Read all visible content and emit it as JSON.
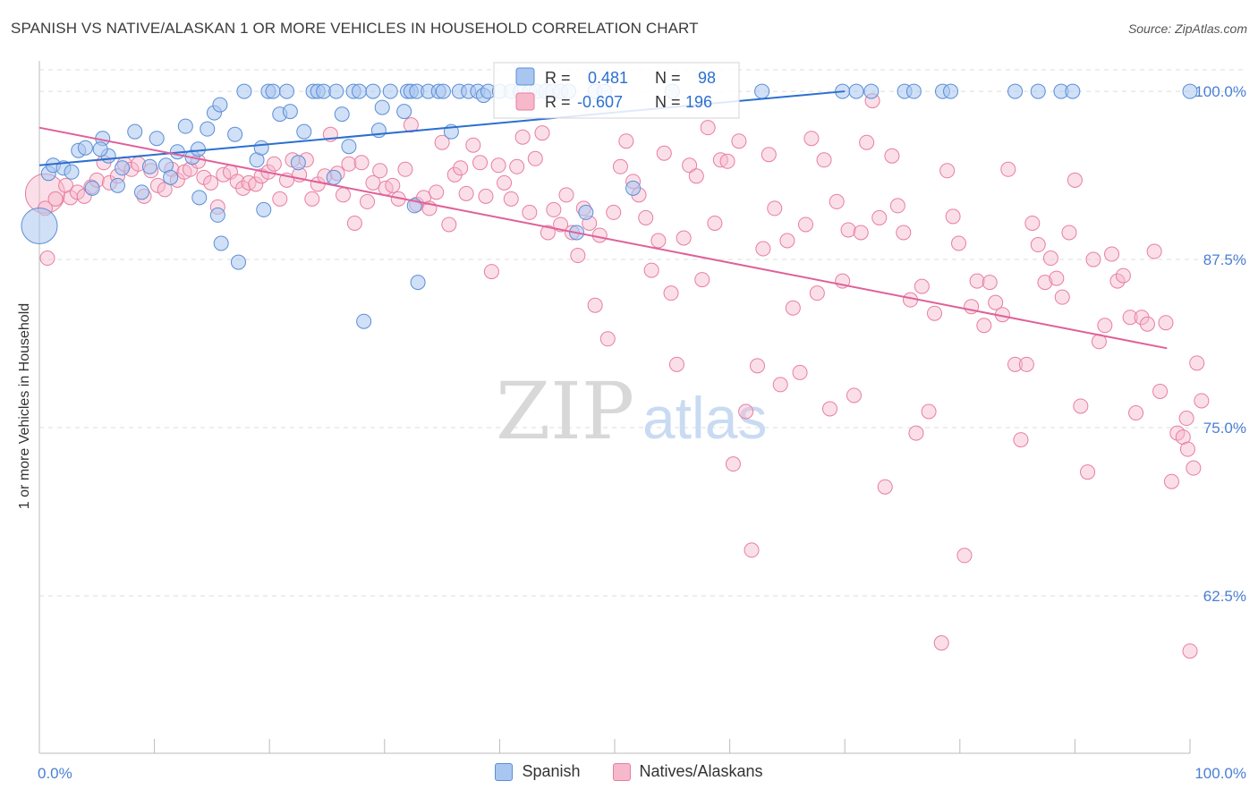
{
  "title": "SPANISH VS NATIVE/ALASKAN 1 OR MORE VEHICLES IN HOUSEHOLD CORRELATION CHART",
  "source": "Source: ZipAtlas.com",
  "watermark": {
    "zip": "ZIP",
    "atlas": "atlas"
  },
  "colors": {
    "spanish_fill": "#a9c6f0",
    "spanish_stroke": "#5b8ed6",
    "spanish_line": "#2b6fd0",
    "native_fill": "#f6b8cb",
    "native_stroke": "#e87ea0",
    "native_line": "#e0609a",
    "tick_text": "#4a7fd4",
    "grid": "#dddddd"
  },
  "legend_box": {
    "rows": [
      {
        "r_label": "R =",
        "r_value": "0.481",
        "n_label": "N =",
        "n_value": "98"
      },
      {
        "r_label": "R =",
        "r_value": "-0.607",
        "n_label": "N =",
        "n_value": "196"
      }
    ]
  },
  "bottom_legend": {
    "spanish": "Spanish",
    "natives": "Natives/Alaskans"
  },
  "chart_data": {
    "type": "scatter",
    "title": "SPANISH VS NATIVE/ALASKAN 1 OR MORE VEHICLES IN HOUSEHOLD CORRELATION CHART",
    "xlabel": "",
    "ylabel": "1 or more Vehicles in Household",
    "xlim": [
      0,
      100
    ],
    "ylim": [
      50.8,
      101.6
    ],
    "x_tick_labels": [
      "0.0%",
      "100.0%"
    ],
    "y_ticks": [
      62.5,
      75.0,
      87.5,
      100.0
    ],
    "y_tick_labels": [
      "62.5%",
      "75.0%",
      "87.5%",
      "100.0%"
    ],
    "grid": true,
    "legend_position": "top-center",
    "series": [
      {
        "name": "Spanish",
        "r": 0.481,
        "n": 98,
        "trend": {
          "x": [
            0,
            70
          ],
          "y": [
            94.5,
            100.0
          ]
        },
        "points": [
          [
            0.8,
            93.9
          ],
          [
            1.2,
            94.5
          ],
          [
            2.1,
            94.3
          ],
          [
            2.8,
            94.0
          ],
          [
            3.4,
            95.6
          ],
          [
            4.0,
            95.8
          ],
          [
            4.6,
            92.8
          ],
          [
            5.5,
            96.5
          ],
          [
            6.0,
            95.2
          ],
          [
            5.3,
            95.7
          ],
          [
            6.8,
            93.0
          ],
          [
            7.2,
            94.3
          ],
          [
            8.3,
            97.0
          ],
          [
            8.9,
            92.5
          ],
          [
            9.6,
            94.4
          ],
          [
            10.2,
            96.5
          ],
          [
            11.0,
            94.5
          ],
          [
            11.4,
            93.6
          ],
          [
            12.0,
            95.5
          ],
          [
            12.7,
            97.4
          ],
          [
            13.3,
            95.1
          ],
          [
            13.8,
            95.7
          ],
          [
            13.9,
            92.1
          ],
          [
            14.6,
            97.2
          ],
          [
            15.2,
            98.4
          ],
          [
            15.7,
            99.0
          ],
          [
            15.5,
            90.8
          ],
          [
            15.8,
            88.7
          ],
          [
            17.0,
            96.8
          ],
          [
            17.3,
            87.3
          ],
          [
            17.8,
            100.0
          ],
          [
            18.9,
            94.9
          ],
          [
            19.3,
            95.8
          ],
          [
            19.5,
            91.2
          ],
          [
            19.9,
            100.0
          ],
          [
            20.3,
            100.0
          ],
          [
            20.9,
            98.3
          ],
          [
            21.5,
            100.0
          ],
          [
            21.8,
            98.5
          ],
          [
            22.5,
            94.7
          ],
          [
            23.0,
            97.0
          ],
          [
            23.8,
            100.0
          ],
          [
            24.2,
            100.0
          ],
          [
            24.7,
            100.0
          ],
          [
            25.6,
            93.6
          ],
          [
            25.8,
            100.0
          ],
          [
            26.3,
            98.3
          ],
          [
            26.9,
            95.9
          ],
          [
            27.3,
            100.0
          ],
          [
            27.8,
            100.0
          ],
          [
            28.2,
            82.9
          ],
          [
            29.0,
            100.0
          ],
          [
            29.5,
            97.1
          ],
          [
            29.8,
            98.8
          ],
          [
            30.5,
            100.0
          ],
          [
            31.7,
            98.5
          ],
          [
            32.0,
            100.0
          ],
          [
            32.3,
            100.0
          ],
          [
            32.8,
            100.0
          ],
          [
            32.6,
            91.5
          ],
          [
            32.9,
            85.8
          ],
          [
            33.8,
            100.0
          ],
          [
            34.7,
            100.0
          ],
          [
            35.1,
            100.0
          ],
          [
            35.8,
            97.0
          ],
          [
            36.5,
            100.0
          ],
          [
            37.3,
            100.0
          ],
          [
            38.1,
            100.0
          ],
          [
            38.6,
            99.7
          ],
          [
            39.0,
            100.0
          ],
          [
            40.0,
            100.0
          ],
          [
            41.0,
            100.0
          ],
          [
            41.8,
            100.0
          ],
          [
            42.6,
            100.0
          ],
          [
            43.2,
            100.0
          ],
          [
            44.0,
            100.0
          ],
          [
            44.6,
            100.0
          ],
          [
            45.3,
            100.0
          ],
          [
            46.0,
            100.0
          ],
          [
            46.7,
            89.5
          ],
          [
            47.5,
            91.0
          ],
          [
            48.3,
            100.0
          ],
          [
            49.1,
            100.0
          ],
          [
            51.6,
            92.8
          ],
          [
            55.0,
            100.0
          ],
          [
            62.8,
            100.0
          ],
          [
            69.8,
            100.0
          ],
          [
            71.0,
            100.0
          ],
          [
            72.3,
            100.0
          ],
          [
            75.2,
            100.0
          ],
          [
            76.0,
            100.0
          ],
          [
            78.5,
            100.0
          ],
          [
            79.2,
            100.0
          ],
          [
            84.8,
            100.0
          ],
          [
            86.8,
            100.0
          ],
          [
            88.8,
            100.0
          ],
          [
            89.8,
            100.0
          ],
          [
            100.0,
            100.0
          ]
        ],
        "big_points": [
          [
            0.0,
            90.0
          ]
        ]
      },
      {
        "name": "Natives/Alaskans",
        "r": -0.607,
        "n": 196,
        "trend": {
          "x": [
            0,
            98
          ],
          "y": [
            97.3,
            80.9
          ]
        },
        "points": [
          [
            0.7,
            87.6
          ],
          [
            0.5,
            91.3
          ],
          [
            1.4,
            92.0
          ],
          [
            2.3,
            93.0
          ],
          [
            2.7,
            92.1
          ],
          [
            3.3,
            92.5
          ],
          [
            3.9,
            92.2
          ],
          [
            4.5,
            92.9
          ],
          [
            5.0,
            93.4
          ],
          [
            5.6,
            94.7
          ],
          [
            6.1,
            93.2
          ],
          [
            6.8,
            93.7
          ],
          [
            7.4,
            94.6
          ],
          [
            8.0,
            94.2
          ],
          [
            8.6,
            94.6
          ],
          [
            9.1,
            92.2
          ],
          [
            9.7,
            94.1
          ],
          [
            10.3,
            93.0
          ],
          [
            10.9,
            92.7
          ],
          [
            11.5,
            94.2
          ],
          [
            12.0,
            93.4
          ],
          [
            12.6,
            94.0
          ],
          [
            13.1,
            94.2
          ],
          [
            13.8,
            94.8
          ],
          [
            14.3,
            93.6
          ],
          [
            14.9,
            93.2
          ],
          [
            15.5,
            91.4
          ],
          [
            16.0,
            93.8
          ],
          [
            16.6,
            94.0
          ],
          [
            17.2,
            93.3
          ],
          [
            17.7,
            92.8
          ],
          [
            18.2,
            93.2
          ],
          [
            18.8,
            93.1
          ],
          [
            19.3,
            93.7
          ],
          [
            19.9,
            94.0
          ],
          [
            20.4,
            94.6
          ],
          [
            20.9,
            92.0
          ],
          [
            21.5,
            93.4
          ],
          [
            22.0,
            94.9
          ],
          [
            22.6,
            93.8
          ],
          [
            23.2,
            94.9
          ],
          [
            23.7,
            92.0
          ],
          [
            24.2,
            93.1
          ],
          [
            24.8,
            93.7
          ],
          [
            25.3,
            96.8
          ],
          [
            25.9,
            93.9
          ],
          [
            26.4,
            92.3
          ],
          [
            26.9,
            94.6
          ],
          [
            27.4,
            90.2
          ],
          [
            28.0,
            94.7
          ],
          [
            28.5,
            91.8
          ],
          [
            29.0,
            93.2
          ],
          [
            29.6,
            94.1
          ],
          [
            30.1,
            92.8
          ],
          [
            30.7,
            93.0
          ],
          [
            31.2,
            92.0
          ],
          [
            31.8,
            94.2
          ],
          [
            32.3,
            97.5
          ],
          [
            32.8,
            91.6
          ],
          [
            33.4,
            92.1
          ],
          [
            33.9,
            91.3
          ],
          [
            34.5,
            92.5
          ],
          [
            35.0,
            96.2
          ],
          [
            35.6,
            90.1
          ],
          [
            36.1,
            93.8
          ],
          [
            36.6,
            94.3
          ],
          [
            37.1,
            92.4
          ],
          [
            37.7,
            96.0
          ],
          [
            38.3,
            94.7
          ],
          [
            38.8,
            92.2
          ],
          [
            39.3,
            86.6
          ],
          [
            39.9,
            94.5
          ],
          [
            40.4,
            93.2
          ],
          [
            41.0,
            92.0
          ],
          [
            41.5,
            94.4
          ],
          [
            42.0,
            96.6
          ],
          [
            42.6,
            91.0
          ],
          [
            43.1,
            95.0
          ],
          [
            43.7,
            96.9
          ],
          [
            44.2,
            89.5
          ],
          [
            44.7,
            91.2
          ],
          [
            45.3,
            90.1
          ],
          [
            45.8,
            92.3
          ],
          [
            46.3,
            89.5
          ],
          [
            46.8,
            87.8
          ],
          [
            47.3,
            91.3
          ],
          [
            47.8,
            90.2
          ],
          [
            48.3,
            84.1
          ],
          [
            48.7,
            89.3
          ],
          [
            49.4,
            81.6
          ],
          [
            49.9,
            91.0
          ],
          [
            50.5,
            94.4
          ],
          [
            51.0,
            96.3
          ],
          [
            51.6,
            93.3
          ],
          [
            52.1,
            92.3
          ],
          [
            52.7,
            90.6
          ],
          [
            53.2,
            86.7
          ],
          [
            53.8,
            88.9
          ],
          [
            54.3,
            95.4
          ],
          [
            54.9,
            85.0
          ],
          [
            55.4,
            79.7
          ],
          [
            56.0,
            89.1
          ],
          [
            56.5,
            94.5
          ],
          [
            57.1,
            93.7
          ],
          [
            57.6,
            86.0
          ],
          [
            58.1,
            97.3
          ],
          [
            58.7,
            90.2
          ],
          [
            59.2,
            94.9
          ],
          [
            59.8,
            94.8
          ],
          [
            60.3,
            72.3
          ],
          [
            60.8,
            96.3
          ],
          [
            61.4,
            76.2
          ],
          [
            61.9,
            65.9
          ],
          [
            62.4,
            79.6
          ],
          [
            62.9,
            88.3
          ],
          [
            63.4,
            95.3
          ],
          [
            63.9,
            91.3
          ],
          [
            64.4,
            78.2
          ],
          [
            65.0,
            88.9
          ],
          [
            65.5,
            83.9
          ],
          [
            66.1,
            79.1
          ],
          [
            66.6,
            90.1
          ],
          [
            67.1,
            96.5
          ],
          [
            67.6,
            85.0
          ],
          [
            68.2,
            94.9
          ],
          [
            68.7,
            76.4
          ],
          [
            69.3,
            91.8
          ],
          [
            69.8,
            85.9
          ],
          [
            70.3,
            89.7
          ],
          [
            70.8,
            77.4
          ],
          [
            71.4,
            89.5
          ],
          [
            71.9,
            96.2
          ],
          [
            72.4,
            99.3
          ],
          [
            73.0,
            90.6
          ],
          [
            73.5,
            70.6
          ],
          [
            74.1,
            95.2
          ],
          [
            74.6,
            91.5
          ],
          [
            75.1,
            89.5
          ],
          [
            75.7,
            84.5
          ],
          [
            76.2,
            74.6
          ],
          [
            76.7,
            85.5
          ],
          [
            77.3,
            76.2
          ],
          [
            77.8,
            83.5
          ],
          [
            78.4,
            59.0
          ],
          [
            78.9,
            94.1
          ],
          [
            79.4,
            90.7
          ],
          [
            79.9,
            88.7
          ],
          [
            80.4,
            65.5
          ],
          [
            81.0,
            84.0
          ],
          [
            81.5,
            85.9
          ],
          [
            82.1,
            82.6
          ],
          [
            82.6,
            85.8
          ],
          [
            83.1,
            84.3
          ],
          [
            83.7,
            83.4
          ],
          [
            84.2,
            94.2
          ],
          [
            84.8,
            79.7
          ],
          [
            85.3,
            74.1
          ],
          [
            85.8,
            79.7
          ],
          [
            86.3,
            90.2
          ],
          [
            86.8,
            88.6
          ],
          [
            87.4,
            85.8
          ],
          [
            87.9,
            87.6
          ],
          [
            88.4,
            86.1
          ],
          [
            88.9,
            84.7
          ],
          [
            89.5,
            89.5
          ],
          [
            90.0,
            93.4
          ],
          [
            90.5,
            76.6
          ],
          [
            91.1,
            71.7
          ],
          [
            91.6,
            87.5
          ],
          [
            92.1,
            81.4
          ],
          [
            92.6,
            82.6
          ],
          [
            93.2,
            87.9
          ],
          [
            93.7,
            85.9
          ],
          [
            94.2,
            86.3
          ],
          [
            94.8,
            83.2
          ],
          [
            95.3,
            76.1
          ],
          [
            95.8,
            83.2
          ],
          [
            96.3,
            82.7
          ],
          [
            96.9,
            88.1
          ],
          [
            97.4,
            77.7
          ],
          [
            97.9,
            82.8
          ],
          [
            98.4,
            71.0
          ],
          [
            98.9,
            74.6
          ],
          [
            99.4,
            74.3
          ],
          [
            99.8,
            73.4
          ],
          [
            100.0,
            58.4
          ],
          [
            100.3,
            72.0
          ],
          [
            100.6,
            79.8
          ],
          [
            101.0,
            77.0
          ],
          [
            99.7,
            75.7
          ]
        ],
        "big_points": [
          [
            0.5,
            92.4
          ]
        ]
      }
    ]
  }
}
